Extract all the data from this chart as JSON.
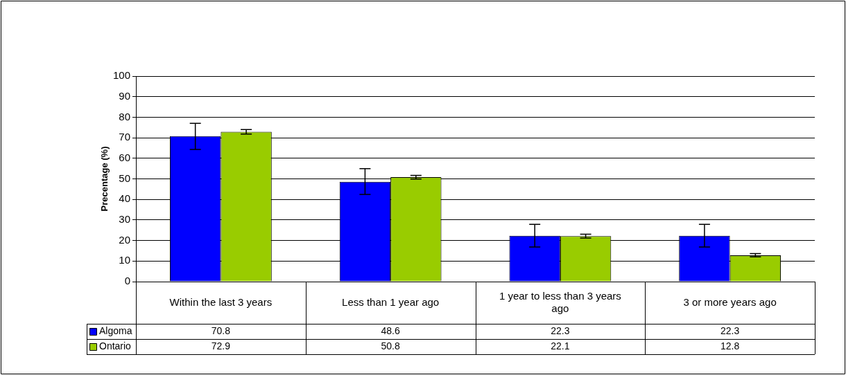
{
  "chart_data": {
    "type": "bar",
    "ylabel": "Precentage (%)",
    "categories": [
      "Within the last 3 years",
      "Less than 1 year ago",
      "1 year to less than 3 years ago",
      "3 or more years ago"
    ],
    "series": [
      {
        "name": "Algoma",
        "color": "#0000ff",
        "values": [
          70.8,
          48.6,
          22.3,
          22.3
        ],
        "errors": [
          [
            64.3,
            77
          ],
          [
            42.4,
            55
          ],
          [
            16.8,
            27.9
          ],
          [
            16.8,
            27.9
          ]
        ]
      },
      {
        "name": "Ontario",
        "color": "#99cc00",
        "values": [
          72.9,
          50.8,
          22.1,
          12.8
        ],
        "errors": [
          [
            71.8,
            74
          ],
          [
            49.9,
            51.7
          ],
          [
            21.2,
            23.1
          ],
          [
            12,
            13.6
          ]
        ]
      }
    ],
    "ylim": [
      0,
      100
    ],
    "yticks": [
      0,
      10,
      20,
      30,
      40,
      50,
      60,
      70,
      80,
      90,
      100
    ],
    "grid": "y",
    "legend": "bottom left",
    "data_labels": true
  }
}
